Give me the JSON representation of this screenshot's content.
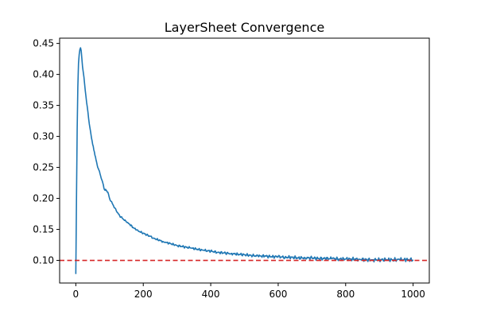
{
  "chart_data": {
    "type": "line",
    "title": "LayerSheet Convergence",
    "xlabel": "",
    "ylabel": "",
    "xlim": [
      -48,
      1048
    ],
    "ylim": [
      0.0635,
      0.4585
    ],
    "x_ticks": [
      0,
      200,
      400,
      600,
      800,
      1000
    ],
    "y_ticks": [
      0.1,
      0.15,
      0.2,
      0.25,
      0.3,
      0.35,
      0.4,
      0.45
    ],
    "grid": false,
    "legend": "none",
    "series": [
      {
        "color": "#1f77b4",
        "points": [
          [
            0,
            0.078
          ],
          [
            2,
            0.2
          ],
          [
            4,
            0.31
          ],
          [
            6,
            0.38
          ],
          [
            8,
            0.418
          ],
          [
            10,
            0.432
          ],
          [
            12,
            0.44
          ],
          [
            14,
            0.443
          ],
          [
            16,
            0.438
          ],
          [
            18,
            0.425
          ],
          [
            20,
            0.412
          ],
          [
            24,
            0.396
          ],
          [
            28,
            0.374
          ],
          [
            32,
            0.355
          ],
          [
            36,
            0.339
          ],
          [
            40,
            0.32
          ],
          [
            45,
            0.303
          ],
          [
            50,
            0.287
          ],
          [
            55,
            0.275
          ],
          [
            60,
            0.262
          ],
          [
            65,
            0.25
          ],
          [
            70,
            0.244
          ],
          [
            75,
            0.233
          ],
          [
            80,
            0.225
          ],
          [
            85,
            0.214
          ],
          [
            90,
            0.213
          ],
          [
            95,
            0.21
          ],
          [
            100,
            0.2
          ],
          [
            110,
            0.19
          ],
          [
            120,
            0.18
          ],
          [
            130,
            0.172
          ],
          [
            140,
            0.167
          ],
          [
            150,
            0.162
          ],
          [
            160,
            0.158
          ],
          [
            170,
            0.153
          ],
          [
            180,
            0.149
          ],
          [
            190,
            0.146
          ],
          [
            200,
            0.144
          ],
          [
            210,
            0.141
          ],
          [
            220,
            0.139
          ],
          [
            230,
            0.136
          ],
          [
            240,
            0.134
          ],
          [
            250,
            0.132
          ],
          [
            260,
            0.13
          ],
          [
            270,
            0.129
          ],
          [
            280,
            0.127
          ],
          [
            290,
            0.126
          ],
          [
            300,
            0.124
          ],
          [
            320,
            0.122
          ],
          [
            340,
            0.12
          ],
          [
            360,
            0.118
          ],
          [
            380,
            0.116
          ],
          [
            400,
            0.115
          ],
          [
            420,
            0.113
          ],
          [
            440,
            0.112
          ],
          [
            460,
            0.111
          ],
          [
            480,
            0.11
          ],
          [
            500,
            0.109
          ],
          [
            520,
            0.108
          ],
          [
            540,
            0.107
          ],
          [
            560,
            0.107
          ],
          [
            580,
            0.106
          ],
          [
            600,
            0.106
          ],
          [
            620,
            0.105
          ],
          [
            640,
            0.105
          ],
          [
            660,
            0.104
          ],
          [
            680,
            0.104
          ],
          [
            700,
            0.104
          ],
          [
            720,
            0.103
          ],
          [
            740,
            0.103
          ],
          [
            760,
            0.103
          ],
          [
            780,
            0.102
          ],
          [
            800,
            0.102
          ],
          [
            820,
            0.102
          ],
          [
            840,
            0.102
          ],
          [
            860,
            0.101
          ],
          [
            880,
            0.101
          ],
          [
            900,
            0.101
          ],
          [
            920,
            0.101
          ],
          [
            940,
            0.101
          ],
          [
            960,
            0.101
          ],
          [
            980,
            0.101
          ],
          [
            1000,
            0.101
          ]
        ]
      }
    ],
    "reference_line": {
      "y": 0.1,
      "style": "dashed",
      "color": "#d62728"
    }
  }
}
